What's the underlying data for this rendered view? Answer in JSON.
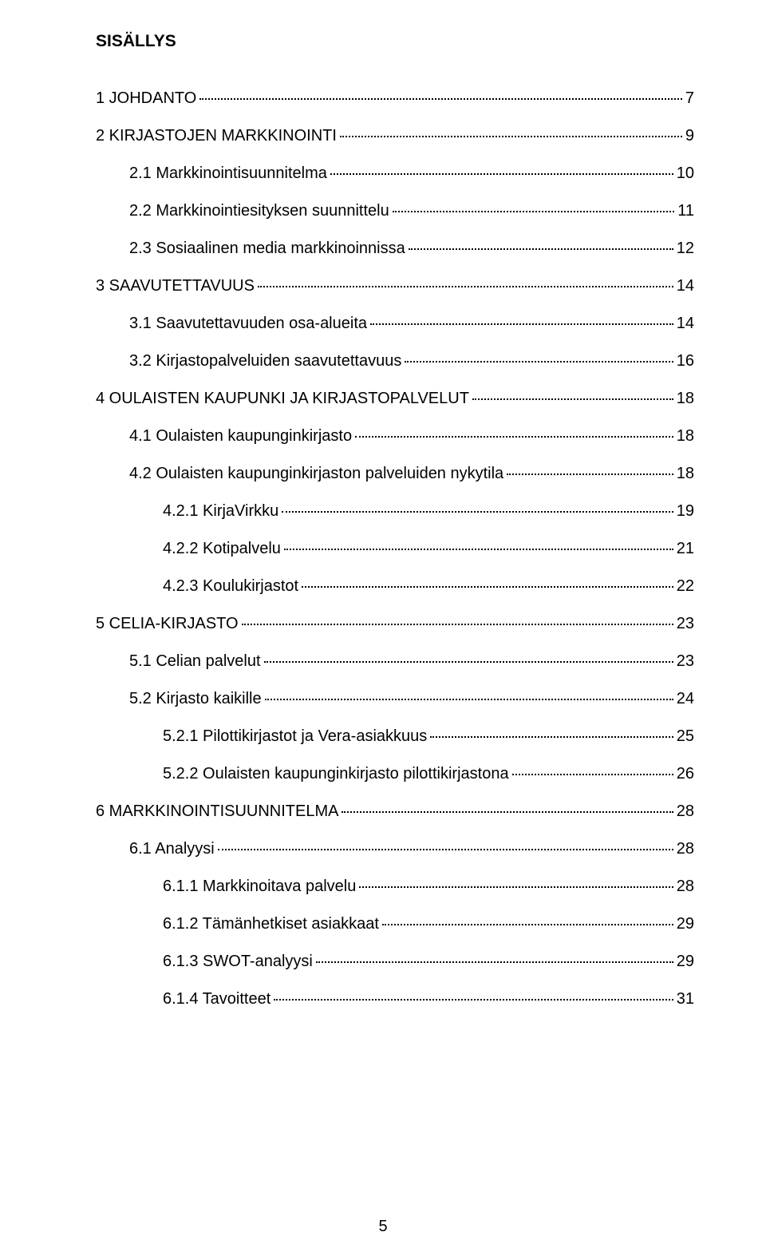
{
  "title": "SISÄLLYS",
  "page_number": "5",
  "toc": [
    {
      "level": 0,
      "label": "1 JOHDANTO",
      "page": "7"
    },
    {
      "level": 0,
      "label": "2 KIRJASTOJEN MARKKINOINTI",
      "page": "9"
    },
    {
      "level": 1,
      "label": "2.1 Markkinointisuunnitelma",
      "page": "10"
    },
    {
      "level": 1,
      "label": "2.2 Markkinointiesityksen suunnittelu",
      "page": "11"
    },
    {
      "level": 1,
      "label": "2.3 Sosiaalinen media markkinoinnissa",
      "page": "12"
    },
    {
      "level": 0,
      "label": "3 SAAVUTETTAVUUS",
      "page": "14"
    },
    {
      "level": 1,
      "label": "3.1 Saavutettavuuden osa-alueita",
      "page": "14"
    },
    {
      "level": 1,
      "label": "3.2 Kirjastopalveluiden saavutettavuus",
      "page": "16"
    },
    {
      "level": 0,
      "label": "4 OULAISTEN KAUPUNKI JA KIRJASTOPALVELUT",
      "page": "18"
    },
    {
      "level": 1,
      "label": "4.1 Oulaisten kaupunginkirjasto",
      "page": "18"
    },
    {
      "level": 1,
      "label": "4.2 Oulaisten kaupunginkirjaston palveluiden nykytila",
      "page": "18"
    },
    {
      "level": 2,
      "label": "4.2.1 KirjaVirkku",
      "page": "19"
    },
    {
      "level": 2,
      "label": "4.2.2 Kotipalvelu",
      "page": "21"
    },
    {
      "level": 2,
      "label": "4.2.3 Koulukirjastot",
      "page": "22"
    },
    {
      "level": 0,
      "label": "5 CELIA-KIRJASTO",
      "page": "23"
    },
    {
      "level": 1,
      "label": "5.1 Celian palvelut",
      "page": "23"
    },
    {
      "level": 1,
      "label": "5.2 Kirjasto kaikille",
      "page": "24"
    },
    {
      "level": 2,
      "label": "5.2.1 Pilottikirjastot ja Vera-asiakkuus",
      "page": "25"
    },
    {
      "level": 2,
      "label": "5.2.2 Oulaisten kaupunginkirjasto pilottikirjastona",
      "page": "26"
    },
    {
      "level": 0,
      "label": "6 MARKKINOINTISUUNNITELMA",
      "page": "28"
    },
    {
      "level": 1,
      "label": "6.1 Analyysi",
      "page": "28"
    },
    {
      "level": 2,
      "label": "6.1.1 Markkinoitava palvelu",
      "page": "28"
    },
    {
      "level": 2,
      "label": "6.1.2 Tämänhetkiset asiakkaat",
      "page": "29"
    },
    {
      "level": 2,
      "label": "6.1.3 SWOT-analyysi",
      "page": "29"
    },
    {
      "level": 2,
      "label": "6.1.4 Tavoitteet",
      "page": "31"
    }
  ]
}
